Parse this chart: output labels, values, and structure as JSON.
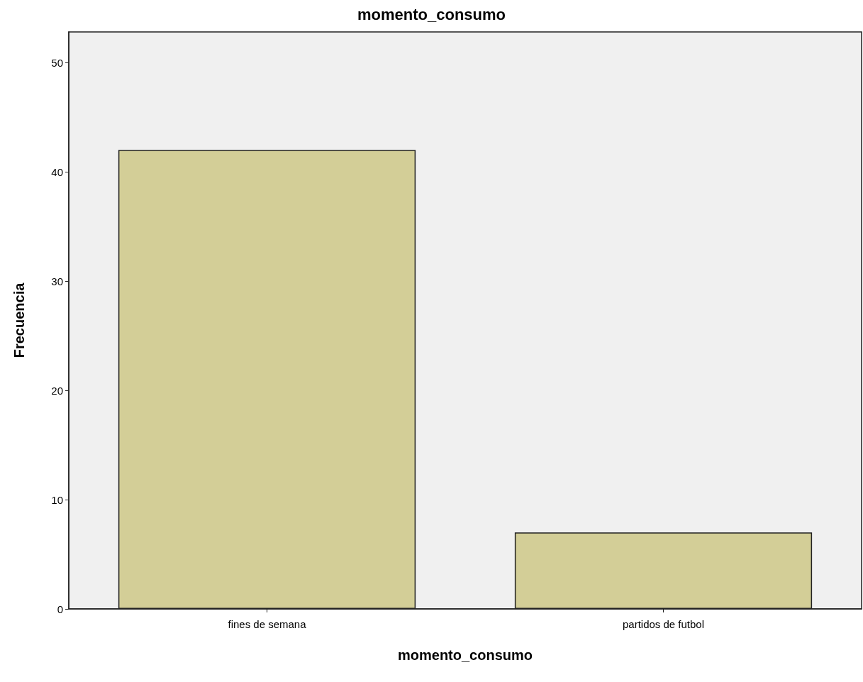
{
  "chart_data": {
    "type": "bar",
    "title": "momento_consumo",
    "xlabel": "momento_consumo",
    "ylabel": "Frecuencia",
    "categories": [
      "fines de semana",
      "partidos de futbol"
    ],
    "values": [
      42,
      7
    ],
    "color": "#d3ce97",
    "ylim": [
      0,
      52.8
    ],
    "yticks": [
      0,
      10,
      20,
      30,
      40,
      50
    ],
    "grid": false
  }
}
